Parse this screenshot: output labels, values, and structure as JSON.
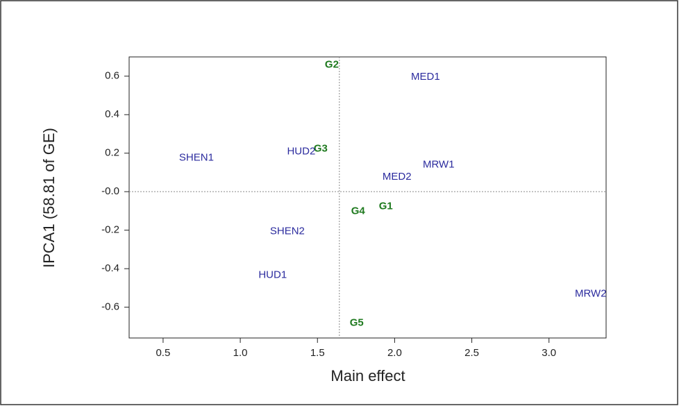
{
  "chart_data": {
    "type": "scatter",
    "x_label": "Main effect",
    "y_label": "IPCA1 (58.81 of GE)",
    "xlim": [
      0.28,
      3.37
    ],
    "ylim": [
      -0.76,
      0.7
    ],
    "xticks": [
      0.5,
      {
        "value": 1,
        "label": "1.0"
      },
      1.5,
      {
        "value": 2,
        "label": "2.0"
      },
      2.5,
      {
        "value": 3,
        "label": "3.0"
      }
    ],
    "yticks": [
      0.6,
      0.4,
      0.2,
      {
        "value": 0,
        "label": "-0.0"
      },
      -0.2,
      -0.4,
      -0.6
    ],
    "reference_x": 1.642,
    "reference_y": 0,
    "series": [
      {
        "color": "#1f7a1f",
        "bold": true,
        "labels": [
          "G1",
          "G2",
          "G3",
          "G4",
          "G5"
        ],
        "x": [
          1.943,
          1.593,
          1.521,
          1.763,
          1.754
        ],
        "values": [
          -0.077,
          0.658,
          0.222,
          -0.103,
          -0.683
        ]
      },
      {
        "color": "#2b2b9e",
        "bold": false,
        "labels": [
          "MED1",
          "MED2",
          "MRW1",
          "MRW2",
          "HUD1",
          "HUD2",
          "SHEN1",
          "SHEN2"
        ],
        "x": [
          2.2,
          2.015,
          2.285,
          3.27,
          1.21,
          1.395,
          0.716,
          1.305
        ],
        "values": [
          0.596,
          0.077,
          0.139,
          -0.532,
          -0.434,
          0.207,
          0.175,
          -0.207
        ]
      }
    ]
  }
}
